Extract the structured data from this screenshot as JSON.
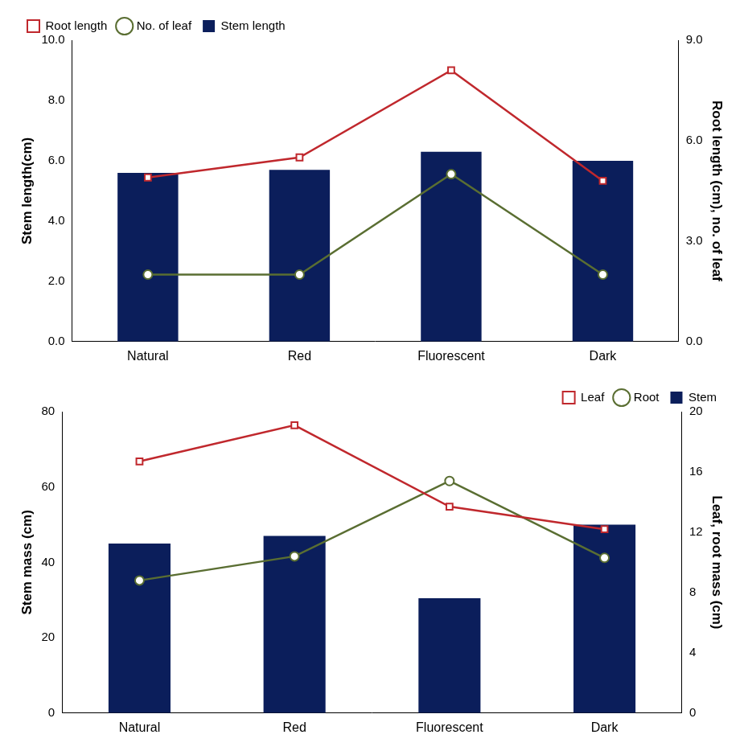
{
  "chart_data": [
    {
      "type": "bar",
      "categories": [
        "Natural",
        "Red",
        "Fluorescent",
        "Dark"
      ],
      "ylabel": "Stem length(cm)",
      "y2label": "Root length (cm), no. of leaf",
      "ylim": [
        0,
        10
      ],
      "yticks": [
        {
          "value": 0,
          "label": "0.0"
        },
        {
          "value": 2,
          "label": "2.0"
        },
        {
          "value": 4,
          "label": "4.0"
        },
        {
          "value": 6,
          "label": "6.0"
        },
        {
          "value": 8,
          "label": "8.0"
        },
        {
          "value": 10,
          "label": "10.0"
        }
      ],
      "y2lim": [
        0,
        9
      ],
      "y2ticks": [
        {
          "value": 0,
          "label": "0.0"
        },
        {
          "value": 3,
          "label": "3.0"
        },
        {
          "value": 6,
          "label": "6.0"
        },
        {
          "value": 9,
          "label": "9.0"
        }
      ],
      "grid": false,
      "legend": "upper left",
      "series": [
        {
          "name": "Stem length",
          "type": "bar",
          "color": "#0b1e5b",
          "values": [
            5.6,
            5.7,
            6.3,
            6.0
          ]
        },
        {
          "name": "Root length",
          "type": "line",
          "axis": "y2",
          "color": "#c0282d",
          "marker": "square",
          "values": [
            4.9,
            5.5,
            8.1,
            4.8
          ]
        },
        {
          "name": "No. of leaf",
          "type": "line",
          "axis": "y2",
          "color": "#5a6e32",
          "marker": "circle",
          "values": [
            2,
            2,
            5,
            2
          ]
        }
      ]
    },
    {
      "type": "bar",
      "categories": [
        "Natural",
        "Red",
        "Fluorescent",
        "Dark"
      ],
      "ylabel": "Stem mass (cm)",
      "y2label": "Leaf, root mass (cm)",
      "ylim": [
        0,
        80
      ],
      "yticks": [
        0,
        20,
        40,
        60,
        80
      ],
      "y2lim": [
        0,
        20
      ],
      "y2ticks": [
        0,
        4,
        8,
        12,
        16,
        20
      ],
      "grid": false,
      "legend": "upper right",
      "series": [
        {
          "name": "Stem",
          "type": "bar",
          "color": "#0b1e5b",
          "values": [
            45,
            47,
            30.5,
            50
          ]
        },
        {
          "name": "Leaf",
          "type": "line",
          "axis": "y2",
          "color": "#c0282d",
          "marker": "square",
          "values": [
            16.7,
            19.1,
            13.7,
            12.2
          ]
        },
        {
          "name": "Root",
          "type": "line",
          "axis": "y2",
          "color": "#5a6e32",
          "marker": "circle",
          "values": [
            8.8,
            10.4,
            15.4,
            10.3
          ]
        }
      ]
    }
  ]
}
